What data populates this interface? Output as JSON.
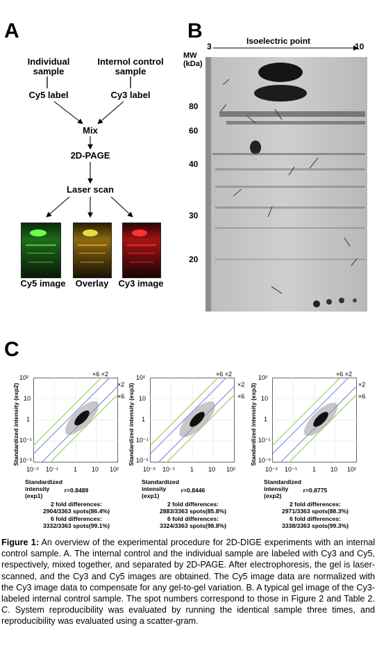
{
  "panelA": {
    "letter": "A",
    "individual_line1": "Individual",
    "individual_line2": "sample",
    "control_line1": "Internol control",
    "control_line2": "sample",
    "cy5_label": "Cy5 label",
    "cy3_label": "Cy3 label",
    "mix": "Mix",
    "page": "2D-PAGE",
    "laser": "Laser scan",
    "cy5_image": "Cy5 image",
    "overlay": "Overlay",
    "cy3_image": "Cy3 image"
  },
  "panelB": {
    "letter": "B",
    "isoelectric": "Isoelectric point",
    "pi_left": "3",
    "pi_right": "10",
    "mw_line1": "MW",
    "mw_line2": "(kDa)",
    "mw_ticks": [
      "80",
      "60",
      "40",
      "30",
      "20"
    ]
  },
  "panelC": {
    "letter": "C",
    "ticks": [
      "10²",
      "10",
      "1",
      "10⁻¹",
      "10⁻²"
    ],
    "xticks": [
      "10⁻²",
      "10⁻¹",
      "1",
      "10",
      "10²"
    ],
    "fold_x6x2": "×6 ×2",
    "fold_x2": "×2",
    "fold_x6": "×6",
    "plots": [
      {
        "ylabel": "Standardized intensity (exp2)",
        "xlabel": "Standardized intensity (exp1)",
        "r": "r=0.8489",
        "two_fold_title": "2 fold differences:",
        "two_fold": "2904/3363 spots(86.4%)",
        "six_fold_title": "6 fold differences:",
        "six_fold": "3332/3363 spots(99.1%)"
      },
      {
        "ylabel": "Standardized intensity (exp3)",
        "xlabel": "Standardized intensity (exp1)",
        "r": "r=0.8446",
        "two_fold_title": "2 fold differences:",
        "two_fold": "2883/3363 spots(85.8%)",
        "six_fold_title": "6 fold differences:",
        "six_fold": "3324/3363 spots(98.8%)"
      },
      {
        "ylabel": "Standardized intensity (exp3)",
        "xlabel": "Standardized intensity (exp2)",
        "r": "r=0.8775",
        "two_fold_title": "2 fold differences:",
        "two_fold": "2971/3363 spots(88.3%)",
        "six_fold_title": "6 fold differences:",
        "six_fold": "3338/3363 spots(99.3%)"
      }
    ]
  },
  "caption": {
    "fig_label": "Figure 1:",
    "text": " An overview of the experimental procedure for 2D-DIGE experiments with an internal control sample. A. The internal control and the individual sample are labeled with Cy3 and Cy5, respectively, mixed together, and separated by 2D-PAGE. After electrophoresis, the gel is laser-scanned, and the Cy3 and Cy5 images are obtained. The Cy5 image data are normalized with the Cy3 image data to compensate for any gel-to-gel variation. B. A typical gel image of the Cy3-labeled internal control sample. The spot numbers correspond to those in Figure 2 and Table 2. C. System reproducibility was evaluated by running the identical sample three times, and reproducibility was evaluated using a scatter-gram."
  }
}
